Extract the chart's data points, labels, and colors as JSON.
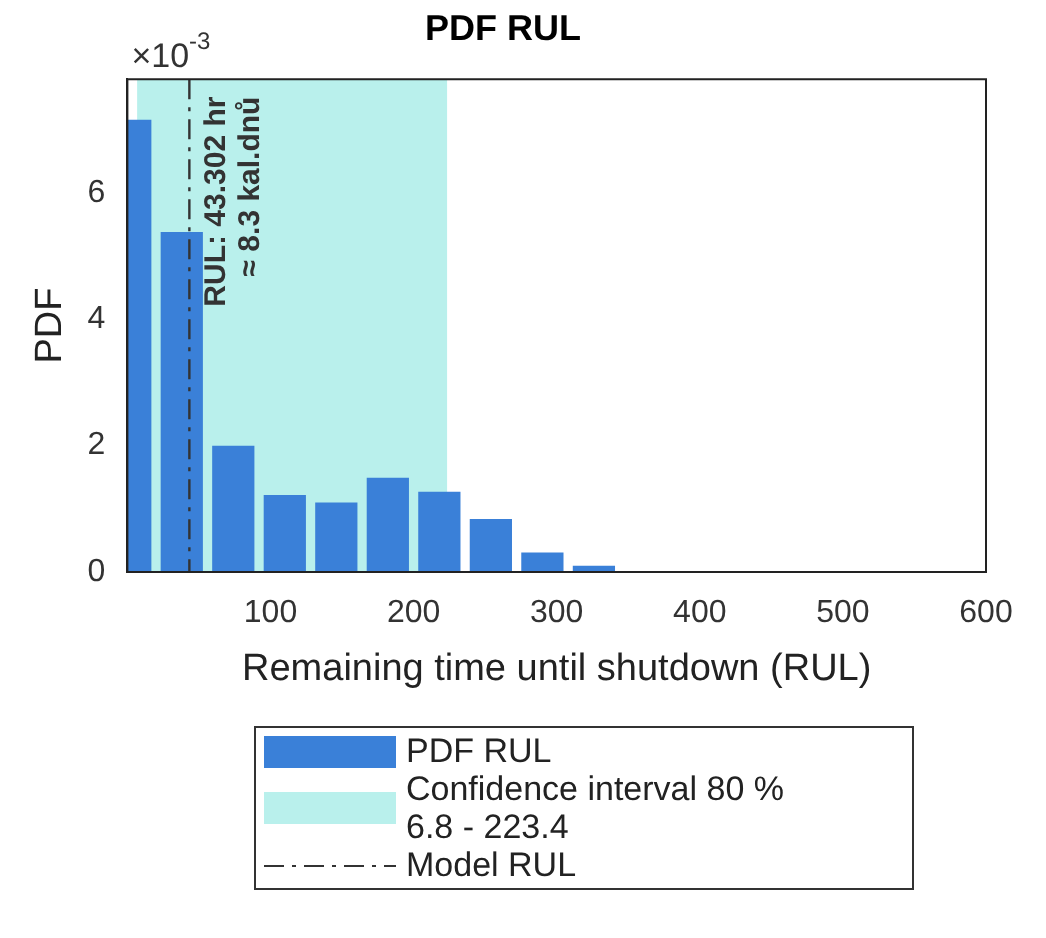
{
  "chart_data": {
    "type": "bar",
    "title": "PDF RUL",
    "xlabel": "Remaining time until shutdown (RUL)",
    "ylabel": "PDF",
    "x": [
      2,
      38,
      74,
      110,
      146,
      182,
      218,
      254,
      290,
      326
    ],
    "series": [
      {
        "name": "PDF RUL",
        "color": "#3a80d8",
        "values": [
          7.16,
          5.38,
          2.0,
          1.22,
          1.1,
          1.49,
          1.27,
          0.84,
          0.31,
          0.1
        ]
      }
    ],
    "xlim": [
      0,
      600
    ],
    "xticks": [
      100,
      200,
      300,
      400,
      500,
      600
    ],
    "ylim": [
      0,
      7.8
    ],
    "yticks": [
      0,
      2,
      4,
      6
    ],
    "bands": [
      {
        "axis": "x",
        "from": 6.8,
        "to": 223.4,
        "label": "Confidence interval 80 %\n6.8 - 223.4",
        "color": "#b9f0ec"
      }
    ],
    "ref_lines": [
      {
        "axis": "x",
        "value": 43.302,
        "label": "Model RUL",
        "color": "#333333",
        "line_style": "dashdot"
      }
    ],
    "annotations": [
      "×10$^{-3}$",
      {
        "text": "RUL: 43.302 hr\n≈ 8.3 kal.dnů",
        "x": 43.302,
        "y": 4.2
      }
    ],
    "grid": false,
    "legend": "bottom"
  }
}
